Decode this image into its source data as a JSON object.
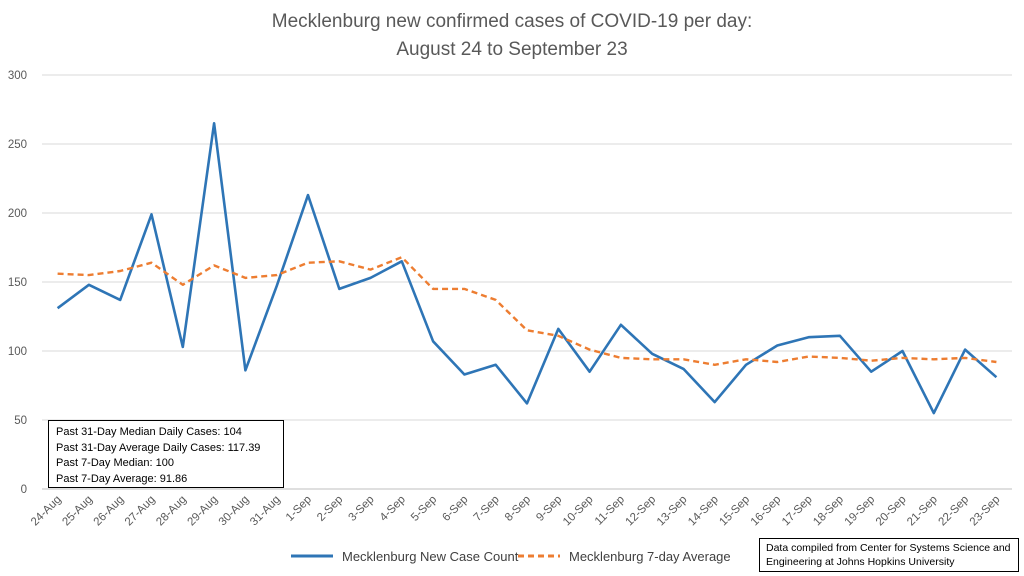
{
  "chart_data": {
    "type": "line",
    "title": [
      "Mecklenburg new confirmed cases of COVID-19 per day:",
      "August 24 to September 23"
    ],
    "xlabel": "",
    "ylabel": "",
    "ylim": [
      0,
      300
    ],
    "yticks": [
      0,
      50,
      100,
      150,
      200,
      250,
      300
    ],
    "grid": true,
    "legend_position": "bottom",
    "categories": [
      "24-Aug",
      "25-Aug",
      "26-Aug",
      "27-Aug",
      "28-Aug",
      "29-Aug",
      "30-Aug",
      "31-Aug",
      "1-Sep",
      "2-Sep",
      "3-Sep",
      "4-Sep",
      "5-Sep",
      "6-Sep",
      "7-Sep",
      "8-Sep",
      "9-Sep",
      "10-Sep",
      "11-Sep",
      "12-Sep",
      "13-Sep",
      "14-Sep",
      "15-Sep",
      "16-Sep",
      "17-Sep",
      "18-Sep",
      "19-Sep",
      "20-Sep",
      "21-Sep",
      "22-Sep",
      "23-Sep"
    ],
    "series": [
      {
        "name": "Mecklenburg New Case Count",
        "color": "#2E75B6",
        "style": "solid",
        "values": [
          131,
          148,
          137,
          199,
          103,
          265,
          86,
          147,
          213,
          145,
          153,
          165,
          107,
          83,
          90,
          62,
          116,
          85,
          119,
          98,
          87,
          63,
          90,
          104,
          110,
          111,
          85,
          100,
          55,
          101,
          81
        ]
      },
      {
        "name": "Mecklenburg 7-day Average",
        "color": "#ED7D31",
        "style": "dashed",
        "values": [
          156,
          155,
          158,
          164,
          148,
          162,
          153,
          155,
          164,
          165,
          159,
          168,
          145,
          145,
          137,
          115,
          111,
          101,
          95,
          94,
          94,
          90,
          94,
          92,
          96,
          95,
          93,
          95,
          94,
          95,
          92
        ]
      }
    ]
  },
  "stats_box": {
    "line1": "Past 31-Day Median Daily Cases: 104",
    "line2": "Past 31-Day Average Daily Cases: 117.39",
    "line3": "Past 7-Day Median: 100",
    "line4": "Past 7-Day Average: 91.86"
  },
  "source_box": {
    "line1": "Data compiled from Center for Systems Science and",
    "line2": "Engineering at Johns Hopkins University"
  },
  "colors": {
    "grid": "#D9D9D9",
    "axis_text": "#595959"
  }
}
